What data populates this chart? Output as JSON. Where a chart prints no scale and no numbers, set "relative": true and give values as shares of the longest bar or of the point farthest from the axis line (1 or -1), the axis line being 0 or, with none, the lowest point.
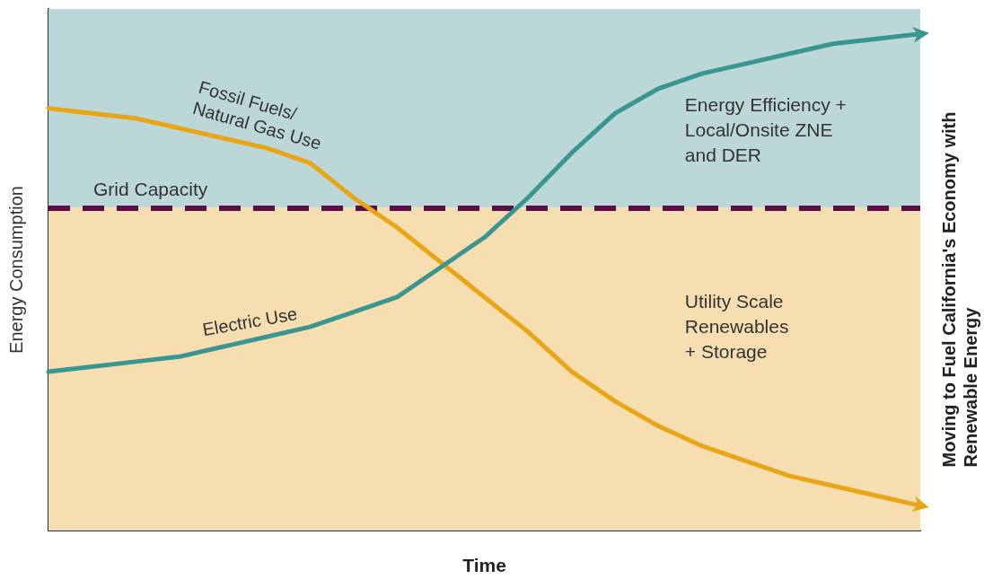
{
  "chart_data": {
    "type": "line",
    "relative": true,
    "title": "Moving to Fuel California's Economy with Renewable Energy",
    "xlabel": "Time",
    "ylabel": "Energy Consumption",
    "categories": [
      null,
      null,
      null,
      null,
      null,
      null,
      null,
      null,
      null,
      null,
      null,
      null,
      null,
      null,
      null,
      null,
      null,
      null,
      null,
      null,
      null
    ],
    "series": [
      {
        "name": "Fossil Fuels/\nNatural Gas Use",
        "color": "#e8a617",
        "values": [
          0.85,
          0.84,
          0.83,
          0.81,
          0.79,
          0.77,
          0.74,
          0.67,
          0.61,
          0.54,
          0.47,
          0.4,
          0.32,
          0.26,
          0.21,
          0.17,
          0.14,
          0.11,
          0.09,
          0.07,
          0.05
        ]
      },
      {
        "name": "Electric Use",
        "color": "#3a9690",
        "values": [
          0.32,
          0.33,
          0.34,
          0.35,
          0.37,
          0.39,
          0.41,
          0.44,
          0.47,
          0.53,
          0.59,
          0.67,
          0.76,
          0.84,
          0.89,
          0.92,
          0.94,
          0.96,
          0.98,
          0.99,
          1
        ]
      }
    ],
    "ref_lines": [
      {
        "axis": "y",
        "value": 0.65,
        "label": "Grid Capacity",
        "color": "#5c0f45",
        "line_style": "dashed"
      }
    ],
    "bands": [
      {
        "axis": "y",
        "from": 0,
        "to": 0.65,
        "label": "Utility Scale\nRenewables\n+ Storage",
        "color": "#f7deb1"
      },
      {
        "axis": "y",
        "from": 0.65,
        "to": 1.05,
        "label": "Energy Efficiency +\nLocal/Onsite ZNE\nand DER",
        "color": "#bcd7d7"
      }
    ],
    "legend": false,
    "grid": false,
    "marker": "none",
    "line_style": "solid"
  }
}
